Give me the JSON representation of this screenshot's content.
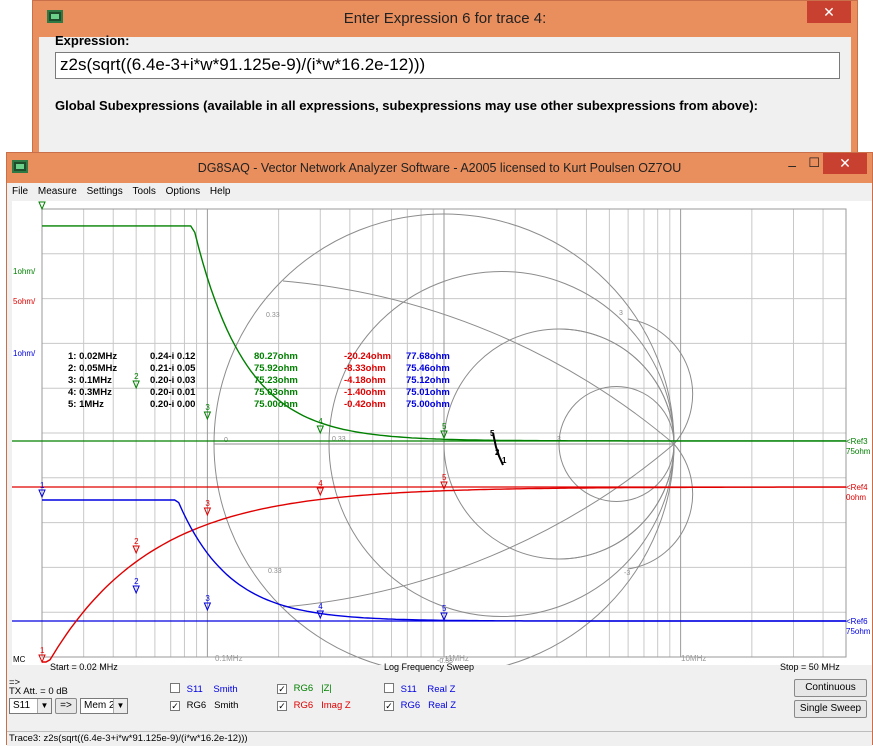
{
  "expression_dialog": {
    "title": "Enter Expression 6 for trace 4:",
    "close_glyph": "✕",
    "expression_label": "Expression:",
    "expression_value": "z2s(sqrt((6.4e-3+i*w*91.125e-9)/(i*w*16.2e-12)))",
    "global_subexpressions_label": "Global Subexpressions (available in all expressions, subexpressions may use other subexpressions from above):"
  },
  "window": {
    "title": "DG8SAQ  -  Vector Network Analyzer Software  - A2005 licensed to Kurt Poulsen OZ7OU",
    "minimize_glyph": "–",
    "maximize_glyph": "☐",
    "close_glyph": "✕"
  },
  "menu": [
    "File",
    "Measure",
    "Settings",
    "Tools",
    "Options",
    "Help"
  ],
  "plot": {
    "scale_labels": [
      {
        "text": "1ohm/",
        "color": "#008000"
      },
      {
        "text": "5ohm/",
        "color": "#e00000"
      },
      {
        "text": "1ohm/",
        "color": "#0000e0"
      }
    ],
    "ref_labels": [
      {
        "name": "<Ref3",
        "value": "75ohm",
        "color": "#008000"
      },
      {
        "name": "<Ref4",
        "value": "0ohm",
        "color": "#e00000"
      },
      {
        "name": "<Ref6",
        "value": "75ohm",
        "color": "#0000e0"
      }
    ],
    "mc_label": "MC",
    "start_label": "Start = 0.02 MHz",
    "sweep_label": "Log Frequency Sweep",
    "stop_label": "Stop = 50 MHz",
    "freq_axis_labels": [
      "0.1MHz",
      "1MHz",
      "10MHz"
    ],
    "smith_labels": [
      "0.33",
      "0.33",
      "0",
      "0.33",
      "1",
      "3",
      "3",
      "-0.33",
      "-3",
      "-1"
    ],
    "markers": [
      {
        "label": "1: 0.02MHz",
        "s11": "0.24-i 0.12",
        "rg6_mag": "80.27ohm",
        "rg6_imag": "-20.24ohm",
        "rg6_real": "77.68ohm"
      },
      {
        "label": "2: 0.05MHz",
        "s11": "0.21-i 0.05",
        "rg6_mag": "75.92ohm",
        "rg6_imag": "-8.33ohm",
        "rg6_real": "75.46ohm"
      },
      {
        "label": "3: 0.1MHz",
        "s11": "0.20-i 0.03",
        "rg6_mag": "75.23ohm",
        "rg6_imag": "-4.18ohm",
        "rg6_real": "75.12ohm"
      },
      {
        "label": "4: 0.3MHz",
        "s11": "0.20-i 0.01",
        "rg6_mag": "75.03ohm",
        "rg6_imag": "-1.40ohm",
        "rg6_real": "75.01ohm"
      },
      {
        "label": "5: 1MHz",
        "s11": "0.20-i 0.00",
        "rg6_mag": "75.00ohm",
        "rg6_imag": "-0.42ohm",
        "rg6_real": "75.00ohm"
      }
    ],
    "marker_numbers": [
      "1",
      "2",
      "3",
      "4",
      "5"
    ],
    "colors": {
      "green": "#008000",
      "red": "#e00000",
      "blue": "#0000e0",
      "grid": "#a0a0a0"
    }
  },
  "controls": {
    "tx_arrow": "=>",
    "tx_att": "TX Att.  = 0 dB",
    "port_select": "S11",
    "arrow_button": "=>",
    "mem_select": "Mem 2",
    "combo_arrow": "▼",
    "checkmark": "✓",
    "traces": [
      {
        "name": "S11",
        "format": "Smith",
        "checked": false,
        "color": "#0000e0"
      },
      {
        "name": "RG6",
        "format": "Smith",
        "checked": true,
        "color": "#000000"
      },
      {
        "name": "RG6",
        "format": "|Z|",
        "checked": true,
        "color": "#008000"
      },
      {
        "name": "RG6",
        "format": "Imag Z",
        "checked": true,
        "color": "#e00000"
      },
      {
        "name": "S11",
        "format": "Real Z",
        "checked": false,
        "color": "#0000e0"
      },
      {
        "name": "RG6",
        "format": "Real Z",
        "checked": true,
        "color": "#0000e0"
      }
    ],
    "continuous_button": "Continuous",
    "single_sweep_button": "Single Sweep"
  },
  "status": "Trace3: z2s(sqrt((6.4e-3+i*w*91.125e-9)/(i*w*16.2e-12)))"
}
